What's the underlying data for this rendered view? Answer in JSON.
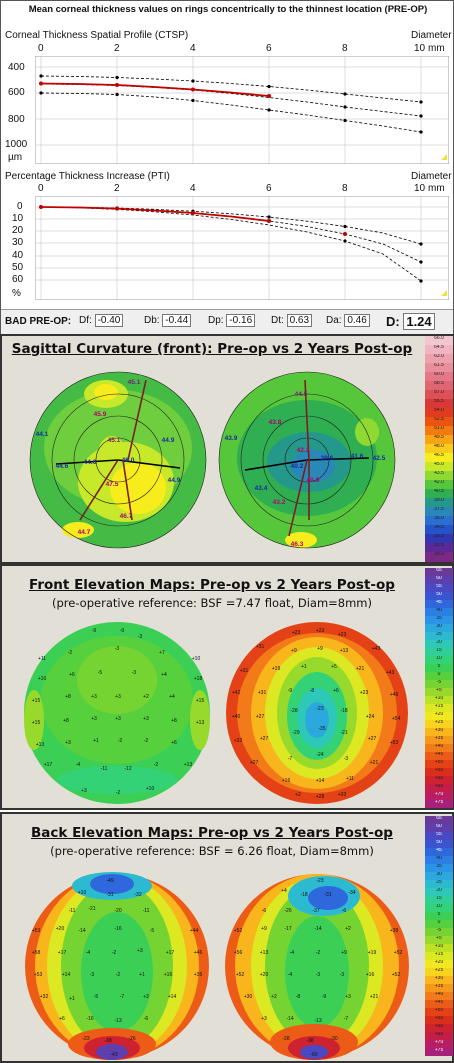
{
  "header_title": "Mean corneal thickness values on rings concentrically to the thinnest location (PRE-OP)",
  "ctsp": {
    "title": "Corneal Thickness Spatial Profile (CTSP)",
    "x_axis_label": "Diameter",
    "x_unit": "mm",
    "x_ticks": [
      "0",
      "2",
      "4",
      "6",
      "8",
      "10"
    ],
    "y_ticks": [
      "400",
      "600",
      "800",
      "1000"
    ],
    "y_unit": "µm"
  },
  "pti": {
    "title": "Percentage Thickness Increase (PTI)",
    "x_axis_label": "Diameter",
    "x_unit": "mm",
    "x_ticks": [
      "0",
      "2",
      "4",
      "6",
      "8",
      "10"
    ],
    "y_ticks": [
      "0",
      "10",
      "20",
      "30",
      "40",
      "50",
      "60"
    ],
    "y_unit": "%"
  },
  "bad": {
    "label": "BAD PRE-OP:",
    "fields": [
      {
        "name": "Df:",
        "value": "-0.40"
      },
      {
        "name": "Db:",
        "value": "-0.44"
      },
      {
        "name": "Dp:",
        "value": "-0.16"
      },
      {
        "name": "Dt:",
        "value": "0.63"
      },
      {
        "name": "Da:",
        "value": "0.46"
      }
    ],
    "d_label": "D:",
    "d_value": "1.24"
  },
  "sagittal": {
    "title": "Sagittal Curvature (front): Pre-op  vs  2 Years Post-op",
    "left_labels": [
      "45.1",
      "45.9",
      "45.1",
      "44.1",
      "44.6",
      "44.6",
      "46.0",
      "44.9",
      "44.9",
      "47.5",
      "46.7",
      "44.7"
    ],
    "right_labels": [
      "44.5",
      "43.8",
      "42.2",
      "43.9",
      "40.2",
      "39.6",
      "41.6",
      "42.5",
      "43.4",
      "43.2",
      "40.9",
      "46.3"
    ],
    "scale": [
      "66.0",
      "64.5",
      "63.0",
      "61.5",
      "60.0",
      "58.5",
      "57.0",
      "55.5",
      "54.0",
      "52.5",
      "51.0",
      "49.5",
      "48.0",
      "46.5",
      "45.0",
      "43.5",
      "42.0",
      "40.5",
      "39.0",
      "37.5",
      "36.0",
      "34.5",
      "33.0",
      "31.5",
      "30.0"
    ]
  },
  "front_elev": {
    "title": "Front Elevation Maps: Pre-op  vs  2 Years Post-op",
    "subtitle": "(pre-operative reference: BSF =7.47 float, Diam=8mm)",
    "scale": [
      "65",
      "60",
      "55",
      "50",
      "45",
      "40",
      "35",
      "30",
      "25",
      "20",
      "15",
      "10",
      "5",
      "0",
      "-5",
      "+5",
      "+10",
      "+15",
      "+20",
      "+25",
      "+30",
      "+35",
      "+40",
      "+45",
      "+50",
      "+55",
      "+60",
      "+65",
      "+70",
      "+75"
    ]
  },
  "back_elev": {
    "title": "Back Elevation Maps: Pre-op  vs  2 Years Post-op",
    "subtitle": "(pre-operative reference: BSF = 6.26 float, Diam=8mm)",
    "scale": [
      "65",
      "60",
      "55",
      "50",
      "45",
      "40",
      "35",
      "30",
      "25",
      "20",
      "15",
      "10",
      "5",
      "0",
      "-5",
      "+5",
      "+10",
      "+15",
      "+20",
      "+25",
      "+30",
      "+35",
      "+40",
      "+45",
      "+50",
      "+55",
      "+60",
      "+65",
      "+70",
      "+75"
    ]
  },
  "colors": {
    "dark_red": "#c00000",
    "black": "#000000",
    "frame": "#3a3a3a"
  }
}
